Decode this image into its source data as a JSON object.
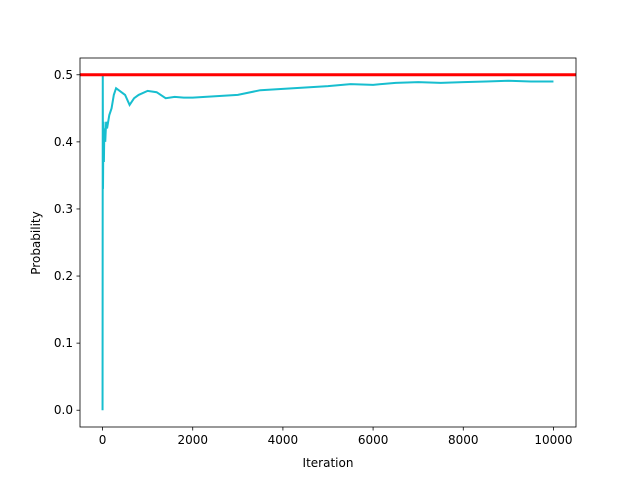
{
  "chart_data": {
    "type": "line",
    "xlabel": "Iteration",
    "ylabel": "Probability",
    "x": [
      0,
      5,
      10,
      20,
      30,
      40,
      60,
      80,
      100,
      150,
      200,
      250,
      300,
      400,
      500,
      600,
      700,
      800,
      1000,
      1200,
      1400,
      1600,
      1800,
      2000,
      2500,
      3000,
      3500,
      4000,
      4500,
      5000,
      5500,
      6000,
      6500,
      7000,
      7500,
      8000,
      8500,
      9000,
      9500,
      10000
    ],
    "values": [
      0.0,
      0.5,
      0.33,
      0.43,
      0.37,
      0.42,
      0.4,
      0.43,
      0.42,
      0.44,
      0.45,
      0.47,
      0.48,
      0.475,
      0.47,
      0.455,
      0.465,
      0.47,
      0.476,
      0.474,
      0.465,
      0.467,
      0.466,
      0.466,
      0.468,
      0.47,
      0.477,
      0.479,
      0.481,
      0.483,
      0.486,
      0.485,
      0.488,
      0.489,
      0.488,
      0.489,
      0.49,
      0.491,
      0.49,
      0.49
    ],
    "color": "#17becf",
    "reference_line": {
      "value": 0.5,
      "color": "#ff0000"
    },
    "xlim": [
      -500,
      10500
    ],
    "xticks": [
      0,
      2000,
      4000,
      6000,
      8000,
      10000
    ],
    "ylim": [
      -0.025,
      0.525
    ],
    "yticks": [
      {
        "value": 0,
        "label": "0.0"
      },
      0.1,
      0.2,
      0.3,
      0.4,
      0.5
    ]
  }
}
